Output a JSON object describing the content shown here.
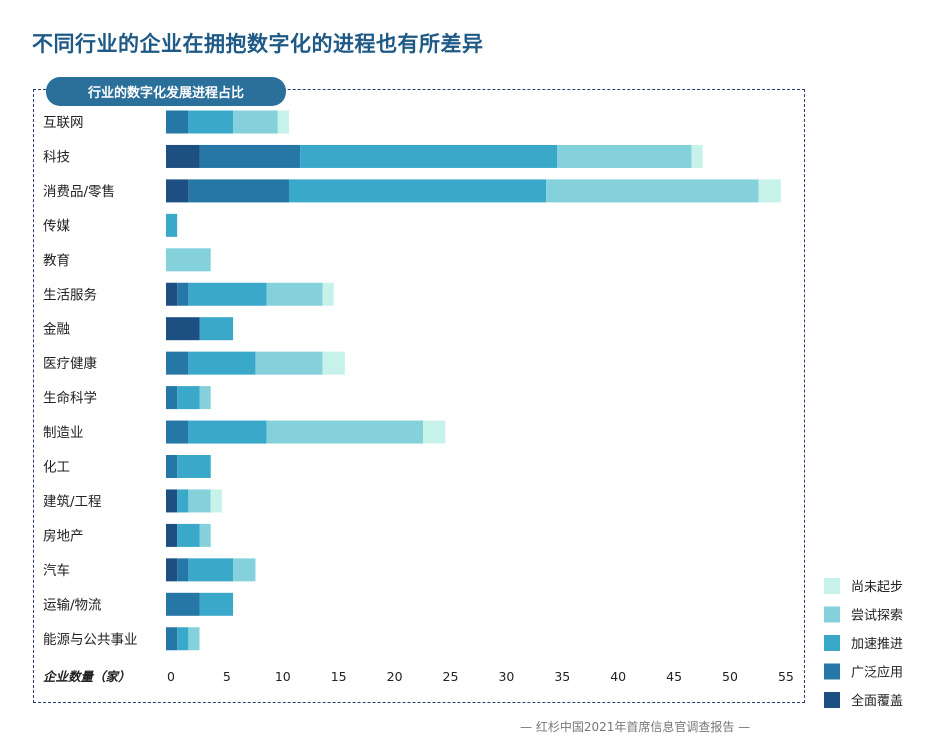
{
  "page": {
    "title": "不同行业的企业在拥抱数字化的进程也有所差异",
    "tab_label": "行业的数字化发展进程占比",
    "footer": "— 红杉中国2021年首席信息官调查报告 —"
  },
  "chart_data": {
    "type": "bar",
    "orientation": "horizontal",
    "stacked": true,
    "title": "行业的数字化发展进程占比",
    "xlabel": "企业数量（家）",
    "xlim": [
      0,
      55
    ],
    "xticks": [
      0,
      5,
      10,
      15,
      20,
      25,
      30,
      35,
      40,
      45,
      50,
      55
    ],
    "legend_position": "bottom-right",
    "categories": [
      "互联网",
      "科技",
      "消费品/零售",
      "传媒",
      "教育",
      "生活服务",
      "金融",
      "医疗健康",
      "生命科学",
      "制造业",
      "化工",
      "建筑/工程",
      "房地产",
      "汽车",
      "运输/物流",
      "能源与公共事业"
    ],
    "series": [
      {
        "name": "全面覆盖",
        "color": "#1e4f82",
        "values": [
          0,
          3,
          2,
          0,
          0,
          1,
          3,
          0,
          0,
          0,
          0,
          1,
          1,
          1,
          0,
          0
        ]
      },
      {
        "name": "广泛应用",
        "color": "#2677a5",
        "values": [
          2,
          9,
          9,
          0,
          0,
          1,
          0,
          2,
          1,
          2,
          1,
          0,
          0,
          1,
          3,
          1
        ]
      },
      {
        "name": "加速推进",
        "color": "#3aa8c9",
        "values": [
          4,
          23,
          23,
          1,
          0,
          7,
          3,
          6,
          2,
          7,
          3,
          1,
          2,
          4,
          3,
          1
        ]
      },
      {
        "name": "尝试探索",
        "color": "#84d1db",
        "values": [
          4,
          12,
          19,
          0,
          4,
          5,
          0,
          6,
          1,
          14,
          0,
          2,
          1,
          2,
          0,
          1
        ]
      },
      {
        "name": "尚未起步",
        "color": "#c7f2ea",
        "values": [
          1,
          1,
          2,
          0,
          0,
          1,
          0,
          2,
          0,
          2,
          0,
          1,
          0,
          0,
          0,
          0
        ]
      }
    ]
  }
}
